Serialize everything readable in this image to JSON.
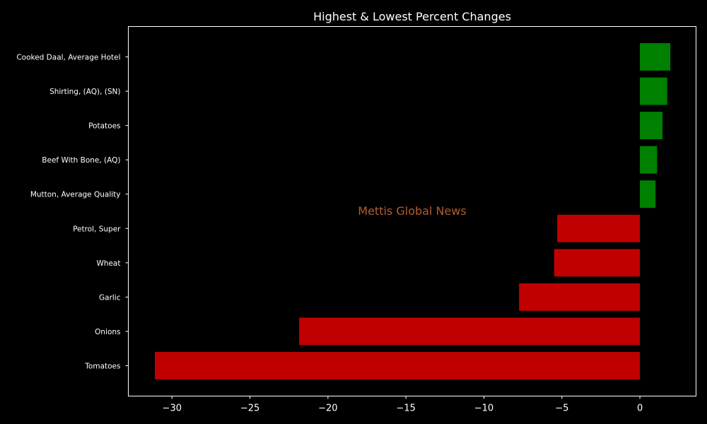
{
  "chart_data": {
    "type": "bar",
    "orientation": "horizontal",
    "title": "Highest & Lowest Percent Changes",
    "xlabel": "",
    "ylabel": "",
    "categories": [
      "Cooked Daal, Average Hotel",
      "Shirting, (AQ), (SN)",
      "Potatoes",
      "Beef With Bone, (AQ)",
      "Mutton, Average Quality",
      "Petrol, Super",
      "Wheat",
      "Garlic",
      "Onions",
      "Tomatoes"
    ],
    "values": [
      1.95,
      1.75,
      1.45,
      1.1,
      1.0,
      -5.3,
      -5.5,
      -7.75,
      -21.85,
      -31.1
    ],
    "xlim": [
      -32.8,
      3.6
    ],
    "xticks": [
      -30,
      -25,
      -20,
      -15,
      -10,
      -5,
      0
    ],
    "xtick_labels": [
      "−30",
      "−25",
      "−20",
      "−15",
      "−10",
      "−5",
      "0"
    ],
    "grid": false,
    "colors": {
      "positive": "#008000",
      "negative": "#c00000",
      "background": "#000000",
      "axes": "#ffffff",
      "watermark": "#b35d2d"
    },
    "watermark": "Mettis Global News"
  }
}
